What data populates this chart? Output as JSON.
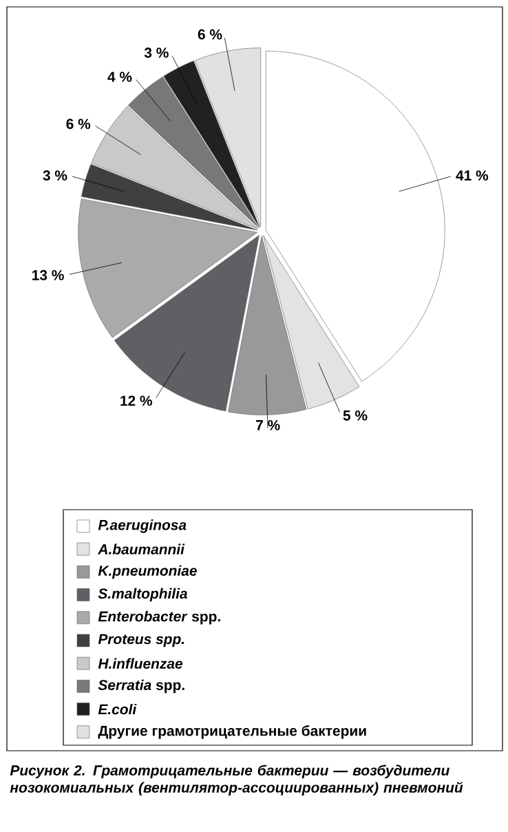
{
  "chart_data": {
    "type": "pie",
    "title": "Рисунок 2. Грамотрицательные бактерии — возбудители нозокомиальных (вентилятор-ассоциированных) пневмоний",
    "categories": [
      "*P.aeruginosa*",
      "*A.baumannii*",
      "*K.pneumoniae*",
      "*S.maltophilia*",
      "*Enterobacter* spp.",
      "*Proteus spp.*",
      "*H.influenzae*",
      "*Serratia* spp.",
      "*E.coli*",
      "Другие грамотрицательные бактерии"
    ],
    "values": [
      41,
      5,
      7,
      12,
      13,
      3,
      6,
      4,
      3,
      6
    ],
    "colors": [
      "#ffffff",
      "#e2e3e5",
      "#98999b",
      "#5f6063",
      "#a9aaac",
      "#3f4042",
      "#c8c9cb",
      "#77787a",
      "#222021",
      "#e0e1e3"
    ],
    "value_labels": [
      "41 %",
      "5 %",
      "7 %",
      "12 %",
      "13 %",
      "3 %",
      "6 %",
      "4 %",
      "3 %",
      "6 %"
    ],
    "legend": "bottom"
  }
}
